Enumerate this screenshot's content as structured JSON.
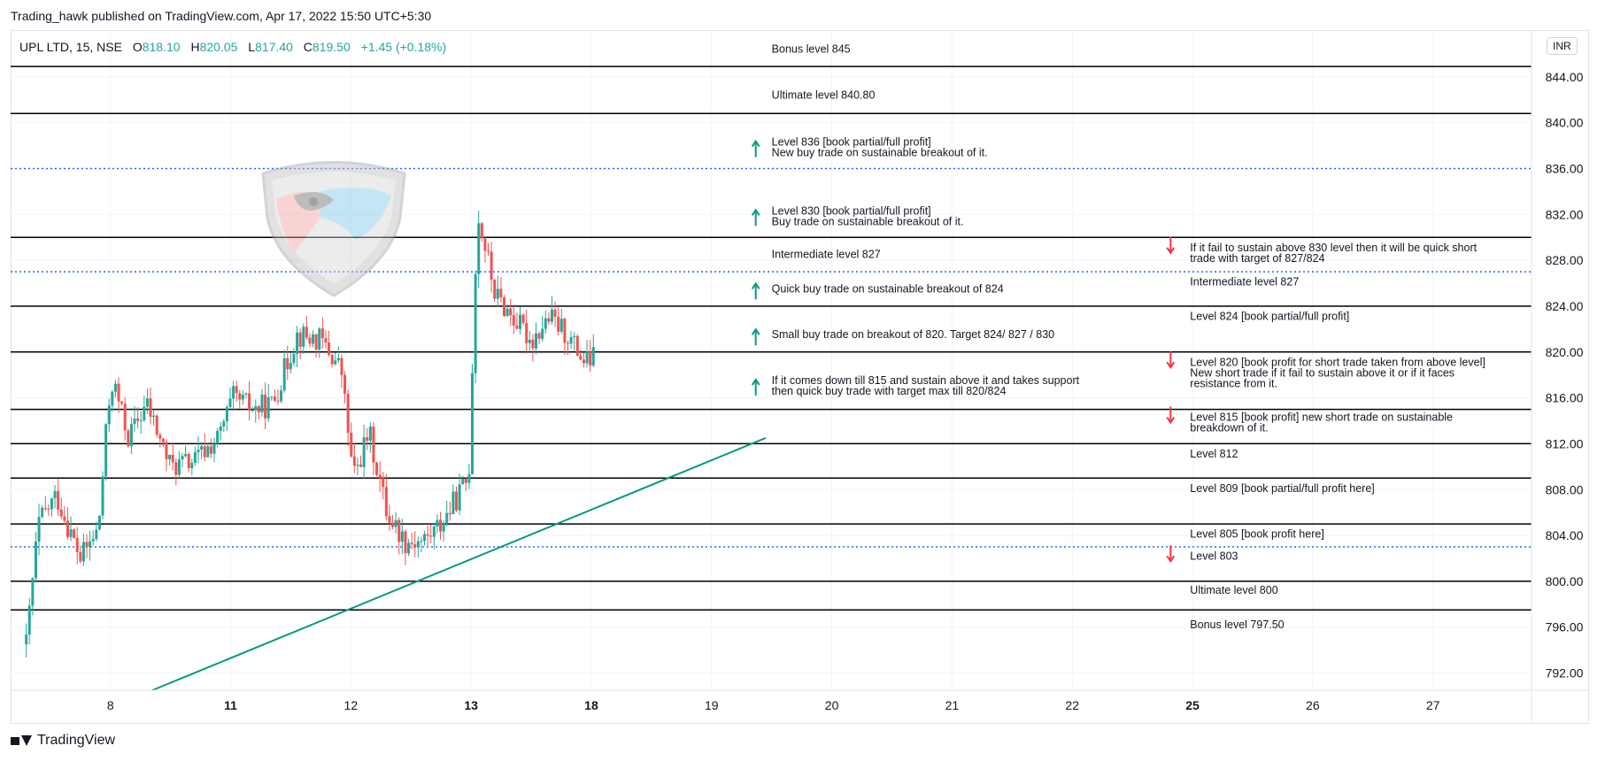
{
  "header": {
    "published": "Trading_hawk published on TradingView.com, Apr 17, 2022 15:50 UTC+5:30"
  },
  "legend": {
    "symbol": "UPL LTD, 15, NSE",
    "o_label": "O",
    "o": "818.10",
    "h_label": "H",
    "h": "820.05",
    "l_label": "L",
    "l": "817.40",
    "c_label": "C",
    "c": "819.50",
    "change": "+1.45 (+0.18%)"
  },
  "currency": "INR",
  "footer": {
    "brand": "TradingView"
  },
  "colors": {
    "up": "#26a69a",
    "down": "#ef5350",
    "level_line": "#000000",
    "dotted_line": "#2962ff",
    "trendline": "#089981",
    "arrow_up": "#089981",
    "arrow_down": "#f23645"
  },
  "chart_data": {
    "type": "candlestick",
    "ylim": [
      790.5,
      848.0
    ],
    "y_ticks": [
      844,
      840,
      836,
      832,
      828,
      824,
      820,
      816,
      812,
      808,
      804,
      800,
      796,
      792
    ],
    "y_tick_labels": [
      "844.00",
      "840.00",
      "836.00",
      "832.00",
      "828.00",
      "824.00",
      "820.00",
      "816.00",
      "812.00",
      "808.00",
      "804.00",
      "800.00",
      "796.00",
      "792.00"
    ],
    "x_tick_labels": [
      {
        "label": "8",
        "day": 0.7,
        "bold": false
      },
      {
        "label": "11",
        "day": 1.7,
        "bold": true
      },
      {
        "label": "12",
        "day": 2.7,
        "bold": false
      },
      {
        "label": "13",
        "day": 3.7,
        "bold": true
      },
      {
        "label": "18",
        "day": 4.7,
        "bold": true
      },
      {
        "label": "19",
        "day": 5.7,
        "bold": false
      },
      {
        "label": "20",
        "day": 6.7,
        "bold": false
      },
      {
        "label": "21",
        "day": 7.7,
        "bold": false
      },
      {
        "label": "22",
        "day": 8.7,
        "bold": false
      },
      {
        "label": "25",
        "day": 9.7,
        "bold": true
      },
      {
        "label": "26",
        "day": 10.7,
        "bold": false
      },
      {
        "label": "27",
        "day": 11.7,
        "bold": false
      }
    ],
    "x_range_days": [
      -0.13,
      12.52
    ],
    "candle_path": [
      {
        "day": 0.0,
        "price": 794.5
      },
      {
        "day": 0.1,
        "price": 805.0
      },
      {
        "day": 0.25,
        "price": 807.5
      },
      {
        "day": 0.45,
        "price": 802.0
      },
      {
        "day": 0.6,
        "price": 804.5
      },
      {
        "day": 0.68,
        "price": 815.0
      },
      {
        "day": 0.72,
        "price": 817.5
      },
      {
        "day": 0.85,
        "price": 812.5
      },
      {
        "day": 1.0,
        "price": 815.5
      },
      {
        "day": 1.2,
        "price": 810.0
      },
      {
        "day": 1.4,
        "price": 810.5
      },
      {
        "day": 1.6,
        "price": 812.5
      },
      {
        "day": 1.72,
        "price": 816.0
      },
      {
        "day": 1.9,
        "price": 815.0
      },
      {
        "day": 2.05,
        "price": 815.5
      },
      {
        "day": 2.25,
        "price": 821.5
      },
      {
        "day": 2.45,
        "price": 821.0
      },
      {
        "day": 2.62,
        "price": 818.5
      },
      {
        "day": 2.72,
        "price": 809.0
      },
      {
        "day": 2.85,
        "price": 813.0
      },
      {
        "day": 3.0,
        "price": 806.0
      },
      {
        "day": 3.15,
        "price": 803.5
      },
      {
        "day": 3.3,
        "price": 803.5
      },
      {
        "day": 3.45,
        "price": 805.0
      },
      {
        "day": 3.68,
        "price": 809.0
      },
      {
        "day": 3.72,
        "price": 822.0
      },
      {
        "day": 3.75,
        "price": 832.0
      },
      {
        "day": 3.82,
        "price": 829.0
      },
      {
        "day": 3.9,
        "price": 825.0
      },
      {
        "day": 4.05,
        "price": 823.0
      },
      {
        "day": 4.2,
        "price": 821.0
      },
      {
        "day": 4.35,
        "price": 823.0
      },
      {
        "day": 4.5,
        "price": 821.5
      },
      {
        "day": 4.65,
        "price": 819.0
      },
      {
        "day": 4.72,
        "price": 819.5
      }
    ],
    "levels": [
      {
        "price": 844.9,
        "style": "solid"
      },
      {
        "price": 840.8,
        "style": "solid"
      },
      {
        "price": 836.0,
        "style": "dotted"
      },
      {
        "price": 830.0,
        "style": "solid"
      },
      {
        "price": 827.0,
        "style": "dotted"
      },
      {
        "price": 824.0,
        "style": "solid"
      },
      {
        "price": 820.0,
        "style": "solid"
      },
      {
        "price": 815.0,
        "style": "solid"
      },
      {
        "price": 812.0,
        "style": "solid"
      },
      {
        "price": 809.0,
        "style": "solid"
      },
      {
        "price": 805.0,
        "style": "solid"
      },
      {
        "price": 803.0,
        "style": "dotted"
      },
      {
        "price": 800.0,
        "style": "solid"
      },
      {
        "price": 797.5,
        "style": "solid"
      }
    ],
    "trendline": {
      "from": {
        "day": 1.05,
        "price": 790.5
      },
      "to": {
        "day": 6.15,
        "price": 812.5
      }
    },
    "annotations": [
      {
        "day": 6.2,
        "price": 846.1,
        "lines": [
          "Bonus level 845"
        ],
        "arrow": "none"
      },
      {
        "day": 6.2,
        "price": 842.1,
        "lines": [
          "Ultimate level 840.80"
        ],
        "arrow": "none"
      },
      {
        "day": 6.2,
        "price": 838.0,
        "lines": [
          "Level 836 [book partial/full profit]",
          "New buy trade on sustainable breakout of it."
        ],
        "arrow": "up"
      },
      {
        "day": 6.2,
        "price": 832.0,
        "lines": [
          "Level 830 [book partial/full profit]",
          "Buy trade on sustainable breakout of it."
        ],
        "arrow": "up"
      },
      {
        "day": 6.2,
        "price": 828.2,
        "lines": [
          "Intermediate level 827"
        ],
        "arrow": "none"
      },
      {
        "day": 6.2,
        "price": 825.2,
        "lines": [
          "Quick buy trade on sustainable breakout of 824"
        ],
        "arrow": "up"
      },
      {
        "day": 6.2,
        "price": 821.2,
        "lines": [
          "Small buy trade on breakout of 820. Target 824/ 827 / 830"
        ],
        "arrow": "up"
      },
      {
        "day": 6.2,
        "price": 817.2,
        "lines": [
          "If it comes down till 815 and sustain above it and takes support",
          "then quick buy trade with target max till 820/824"
        ],
        "arrow": "up"
      },
      {
        "day": 9.68,
        "price": 828.8,
        "lines": [
          "If it fail to sustain above 830 level then it will be quick short",
          "trade with target of 827/824"
        ],
        "arrow": "down"
      },
      {
        "day": 9.68,
        "price": 825.8,
        "lines": [
          "Intermediate level 827"
        ],
        "arrow": "none"
      },
      {
        "day": 9.68,
        "price": 822.8,
        "lines": [
          "Level 824 [book partial/full profit]"
        ],
        "arrow": "none"
      },
      {
        "day": 9.68,
        "price": 818.8,
        "lines": [
          "Level 820 [book profit for short trade taken from above level]",
          "New short trade if it fail to sustain above it or if it faces",
          "resistance from it."
        ],
        "arrow": "down"
      },
      {
        "day": 9.68,
        "price": 814.0,
        "lines": [
          "Level 815 [book profit] new short trade on sustainable",
          "breakdown of it."
        ],
        "arrow": "down"
      },
      {
        "day": 9.68,
        "price": 810.8,
        "lines": [
          "Level 812"
        ],
        "arrow": "none"
      },
      {
        "day": 9.68,
        "price": 807.8,
        "lines": [
          "Level 809 [book partial/full profit here]"
        ],
        "arrow": "none"
      },
      {
        "day": 9.68,
        "price": 803.8,
        "lines": [
          "Level 805 [book profit here]"
        ],
        "arrow": "none"
      },
      {
        "day": 9.68,
        "price": 801.9,
        "lines": [
          "Level 803"
        ],
        "arrow": "down"
      },
      {
        "day": 9.68,
        "price": 798.9,
        "lines": [
          "Ultimate level 800"
        ],
        "arrow": "none"
      },
      {
        "day": 9.68,
        "price": 795.9,
        "lines": [
          "Bonus level 797.50"
        ],
        "arrow": "none"
      }
    ]
  }
}
